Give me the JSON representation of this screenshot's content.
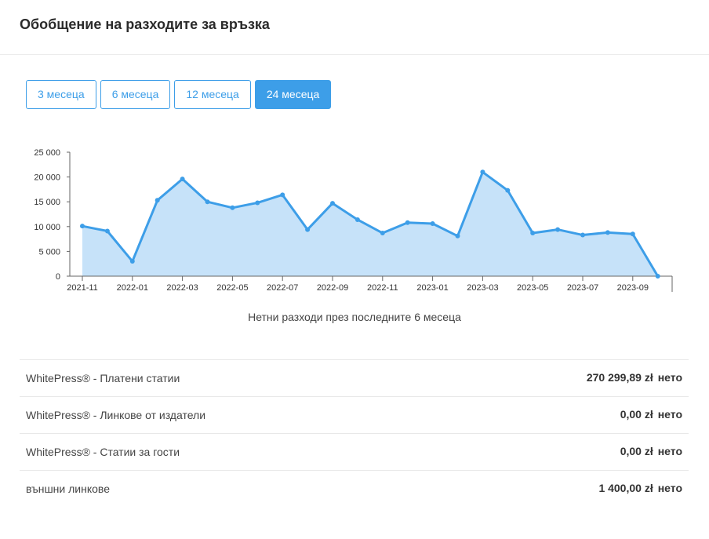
{
  "page": {
    "title": "Обобщение на разходите за връзка"
  },
  "tabs": [
    {
      "label": "3 месеца",
      "active": false
    },
    {
      "label": "6 месеца",
      "active": false
    },
    {
      "label": "12 месеца",
      "active": false
    },
    {
      "label": "24 месеца",
      "active": true
    }
  ],
  "chart_caption": "Нетни разходи през последните 6 месеца",
  "chart_data": {
    "type": "area",
    "x_tick_labels": [
      "2021-11",
      "2022-01",
      "2022-03",
      "2022-05",
      "2022-07",
      "2022-09",
      "2022-11",
      "2023-01",
      "2023-03",
      "2023-05",
      "2023-07",
      "2023-09"
    ],
    "y_tick_labels": [
      "0",
      "5 000",
      "10 000",
      "15 000",
      "20 000",
      "25 000"
    ],
    "ylim": [
      0,
      25000
    ],
    "x": [
      "2021-11",
      "2021-12",
      "2022-01",
      "2022-02",
      "2022-03",
      "2022-04",
      "2022-05",
      "2022-06",
      "2022-07",
      "2022-08",
      "2022-09",
      "2022-10",
      "2022-11",
      "2022-12",
      "2023-01",
      "2023-02",
      "2023-03",
      "2023-04",
      "2023-05",
      "2023-06",
      "2023-07",
      "2023-08",
      "2023-09",
      "2023-10"
    ],
    "values": [
      10100,
      9100,
      3000,
      15300,
      19600,
      15000,
      13800,
      14800,
      16400,
      9400,
      14700,
      11400,
      8700,
      10800,
      10600,
      8100,
      21000,
      17300,
      8700,
      9400,
      8300,
      8800,
      8500,
      0
    ],
    "grid": false,
    "colors": {
      "line": "#3d9ee8",
      "fill": "#c6e2f9"
    }
  },
  "summary": {
    "rows": [
      {
        "label": "WhitePress® - Платени статии",
        "value": "270 299,89 zł",
        "suffix": "нето"
      },
      {
        "label": "WhitePress® - Линкове от издатели",
        "value": "0,00 zł",
        "suffix": "нето"
      },
      {
        "label": "WhitePress® - Статии за гости",
        "value": "0,00 zł",
        "suffix": "нето"
      },
      {
        "label": "външни линкове",
        "value": "1 400,00 zł",
        "suffix": "нето"
      }
    ]
  }
}
